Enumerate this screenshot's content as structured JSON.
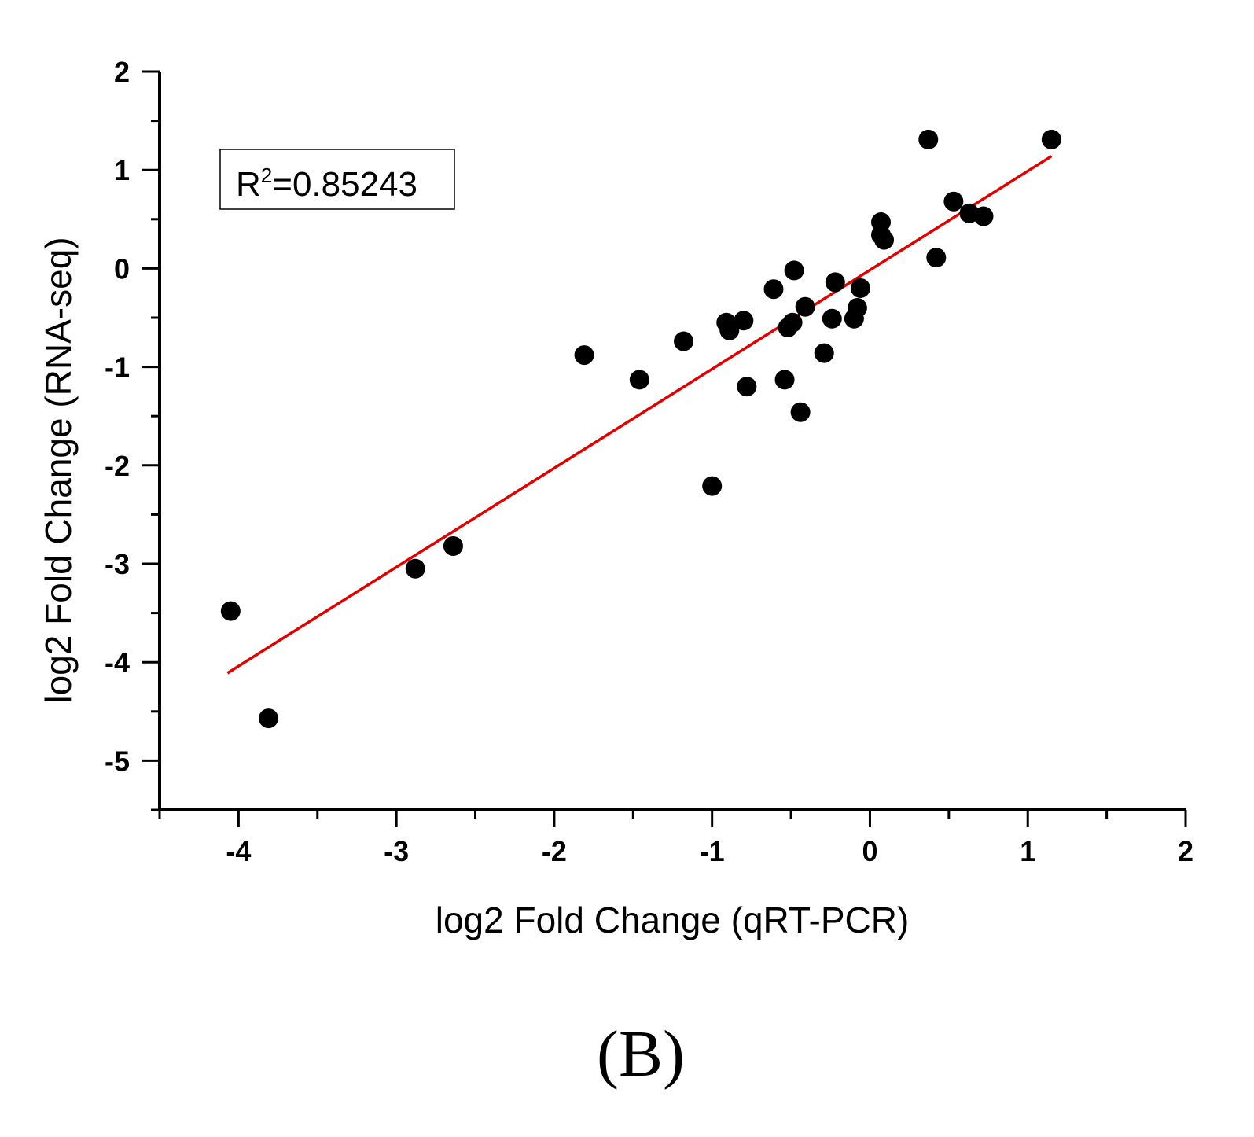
{
  "chart_data": {
    "type": "scatter",
    "title": "",
    "xlabel": "log2 Fold Change (qRT-PCR)",
    "ylabel": "log2 Fold Change (RNA-seq)",
    "xlim": [
      -4.5,
      2
    ],
    "ylim": [
      -5.5,
      2
    ],
    "x_ticks": [
      -4,
      -3,
      -2,
      -1,
      0,
      1,
      2
    ],
    "y_ticks": [
      2,
      1,
      0,
      -1,
      -2,
      -3,
      -4,
      -5
    ],
    "x_tick_labels": [
      "-4",
      "-3",
      "-2",
      "-1",
      "0",
      "1",
      "2"
    ],
    "y_tick_labels": [
      "2",
      "1",
      "0",
      "-1",
      "-2",
      "-3",
      "-4",
      "-5"
    ],
    "grid": false,
    "marker_color": "#000000",
    "series": [
      {
        "name": "genes",
        "points": [
          {
            "x": -4.05,
            "y": -3.48
          },
          {
            "x": -3.81,
            "y": -4.57
          },
          {
            "x": -2.88,
            "y": -3.05
          },
          {
            "x": -2.64,
            "y": -2.82
          },
          {
            "x": -1.81,
            "y": -0.88
          },
          {
            "x": -1.46,
            "y": -1.13
          },
          {
            "x": -1.18,
            "y": -0.74
          },
          {
            "x": -1.0,
            "y": -2.21
          },
          {
            "x": -0.91,
            "y": -0.55
          },
          {
            "x": -0.89,
            "y": -0.63
          },
          {
            "x": -0.8,
            "y": -0.53
          },
          {
            "x": -0.78,
            "y": -1.2
          },
          {
            "x": -0.61,
            "y": -0.21
          },
          {
            "x": -0.54,
            "y": -1.13
          },
          {
            "x": -0.52,
            "y": -0.6
          },
          {
            "x": -0.49,
            "y": -0.55
          },
          {
            "x": -0.48,
            "y": -0.02
          },
          {
            "x": -0.44,
            "y": -1.46
          },
          {
            "x": -0.41,
            "y": -0.39
          },
          {
            "x": -0.29,
            "y": -0.86
          },
          {
            "x": -0.24,
            "y": -0.51
          },
          {
            "x": -0.22,
            "y": -0.14
          },
          {
            "x": -0.1,
            "y": -0.51
          },
          {
            "x": -0.08,
            "y": -0.4
          },
          {
            "x": -0.06,
            "y": -0.2
          },
          {
            "x": 0.07,
            "y": 0.34
          },
          {
            "x": 0.07,
            "y": 0.47
          },
          {
            "x": 0.09,
            "y": 0.29
          },
          {
            "x": 0.37,
            "y": 1.31
          },
          {
            "x": 0.42,
            "y": 0.11
          },
          {
            "x": 0.53,
            "y": 0.68
          },
          {
            "x": 0.63,
            "y": 0.56
          },
          {
            "x": 0.72,
            "y": 0.53
          },
          {
            "x": 1.15,
            "y": 1.31
          }
        ]
      }
    ],
    "fit_line": {
      "color": "#e00000",
      "x": [
        -4.07,
        1.15
      ],
      "y": [
        -4.11,
        1.14
      ]
    },
    "annotation": {
      "r2_prefix": "R",
      "r2_sup": "2",
      "r2_value": "=0.85243",
      "legend_position": "top-left"
    },
    "panel_label": "(B)"
  }
}
